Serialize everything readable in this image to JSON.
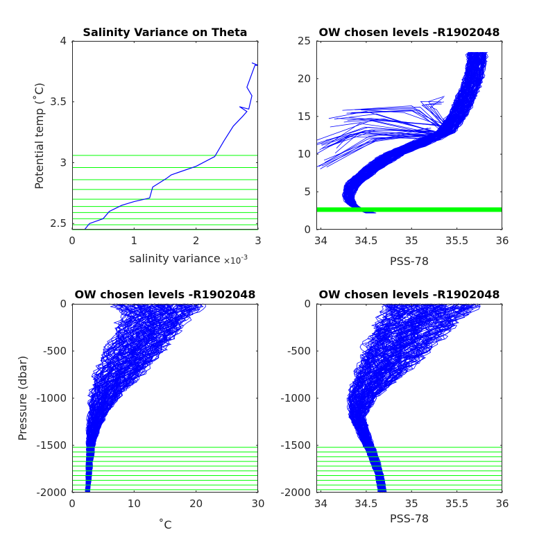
{
  "colors": {
    "profile": "#0000ff",
    "levels": "#00ff00",
    "axis": "#262626"
  },
  "chart_data": [
    {
      "id": "p1",
      "type": "line",
      "title": "Salinity Variance on Theta",
      "xlabel": "salinity variance",
      "xexponent": "×10",
      "xexponent_power": "-3",
      "ylabel": "Potential temp (˚C)",
      "xlim": [
        0,
        3
      ],
      "ylim": [
        2.45,
        4
      ],
      "xticks": [
        0,
        1,
        2,
        3
      ],
      "xtick_labels": [
        "0",
        "1",
        "2",
        "3"
      ],
      "yticks": [
        2.5,
        3,
        3.5,
        4
      ],
      "ytick_labels": [
        "2.5",
        "3",
        "3.5",
        "4"
      ],
      "series": [
        {
          "x": [
            0.2,
            0.28,
            0.5,
            0.6,
            0.8,
            1.0,
            1.25,
            1.3,
            1.52,
            1.6,
            2.0,
            2.3,
            2.45,
            2.6,
            2.75,
            2.82,
            2.7,
            2.85,
            2.9,
            2.82,
            2.95,
            3.0,
            2.9
          ],
          "y": [
            2.45,
            2.5,
            2.54,
            2.6,
            2.65,
            2.68,
            2.71,
            2.8,
            2.87,
            2.9,
            2.97,
            3.05,
            3.18,
            3.3,
            3.38,
            3.42,
            3.46,
            3.44,
            3.55,
            3.62,
            3.8,
            3.8,
            3.82
          ]
        }
      ],
      "hlines": [
        2.45,
        2.49,
        2.54,
        2.59,
        2.64,
        2.7,
        2.78,
        2.86,
        2.96,
        3.06
      ]
    },
    {
      "id": "p2",
      "type": "line",
      "title": "OW chosen levels -R1902048",
      "xlabel": "PSS-78",
      "ylabel": "",
      "xlim": [
        33.95,
        36
      ],
      "ylim": [
        0,
        25
      ],
      "xticks": [
        34,
        34.5,
        35,
        35.5,
        36
      ],
      "xtick_labels": [
        "34",
        "34.5",
        "35",
        "35.5",
        "36"
      ],
      "yticks": [
        0,
        5,
        10,
        15,
        20,
        25
      ],
      "ytick_labels": [
        "0",
        "5",
        "10",
        "15",
        "20",
        "25"
      ],
      "profile_shape": {
        "y": [
          2.2,
          2.6,
          3.0,
          3.5,
          4.5,
          6.0,
          8.0,
          10.0,
          12.0,
          13.0,
          15.0,
          17.5,
          20.0,
          22.5,
          23.5
        ],
        "x": [
          34.55,
          34.45,
          34.38,
          34.33,
          34.3,
          34.35,
          34.55,
          34.8,
          35.2,
          35.38,
          35.5,
          35.6,
          35.68,
          35.72,
          35.72
        ],
        "spread": [
          0.05,
          0.04,
          0.04,
          0.05,
          0.06,
          0.08,
          0.1,
          0.12,
          0.12,
          0.1,
          0.1,
          0.1,
          0.1,
          0.1,
          0.1
        ]
      },
      "surface_fans": [
        {
          "x": [
            35.25,
            34.5,
            33.95
          ],
          "y": [
            13.0,
            13.8,
            11.2
          ]
        },
        {
          "x": [
            35.3,
            34.6,
            34.2
          ],
          "y": [
            13.2,
            15.0,
            14.2
          ]
        },
        {
          "x": [
            35.35,
            35.0,
            34.35
          ],
          "y": [
            13.5,
            15.8,
            15.4
          ]
        },
        {
          "x": [
            35.2,
            34.5,
            34.0
          ],
          "y": [
            12.8,
            12.2,
            8.5
          ]
        },
        {
          "x": [
            35.4,
            35.2,
            35.3
          ],
          "y": [
            13.8,
            16.5,
            17.0
          ]
        },
        {
          "x": [
            35.15,
            34.4,
            34.05
          ],
          "y": [
            12.6,
            13.0,
            10.5
          ]
        }
      ],
      "band": {
        "y": [
          2.35,
          2.95
        ]
      }
    },
    {
      "id": "p3",
      "type": "line",
      "title": "OW chosen levels -R1902048",
      "xlabel": "˚C",
      "ylabel": "Pressure (dbar)",
      "xlim": [
        0,
        30
      ],
      "ylim": [
        -2000,
        0
      ],
      "xticks": [
        0,
        10,
        20,
        30
      ],
      "xtick_labels": [
        "0",
        "10",
        "20",
        "30"
      ],
      "yticks": [
        -2000,
        -1500,
        -1000,
        -500,
        0
      ],
      "ytick_labels": [
        "-2000",
        "-1500",
        "-1000",
        "-500",
        "0"
      ],
      "profile_shape": {
        "y": [
          -2000,
          -1800,
          -1500,
          -1300,
          -1100,
          -900,
          -700,
          -500,
          -300,
          -150,
          -50,
          0
        ],
        "x": [
          2.5,
          2.7,
          3.0,
          3.5,
          4.5,
          6.0,
          8.0,
          10.0,
          12.0,
          13.5,
          14.0,
          14.0
        ],
        "spread": [
          0.3,
          0.4,
          0.6,
          1.0,
          1.6,
          2.6,
          3.6,
          4.2,
          4.6,
          5.0,
          6.0,
          6.5
        ]
      },
      "hlines": [
        -1520,
        -1570,
        -1620,
        -1670,
        -1720,
        -1770,
        -1820,
        -1870,
        -1920,
        -1970
      ]
    },
    {
      "id": "p4",
      "type": "line",
      "title": "OW chosen levels -R1902048",
      "xlabel": "PSS-78",
      "ylabel": "",
      "xlim": [
        33.95,
        36
      ],
      "ylim": [
        -2000,
        0
      ],
      "xticks": [
        34,
        34.5,
        35,
        35.5,
        36
      ],
      "xtick_labels": [
        "34",
        "34.5",
        "35",
        "35.5",
        "36"
      ],
      "yticks": [
        -2000,
        -1500,
        -1000,
        -500,
        0
      ],
      "ytick_labels": [
        "-2000",
        "-1500",
        "-1000",
        "-500",
        "0"
      ],
      "profile_shape": {
        "y": [
          -2000,
          -1800,
          -1600,
          -1400,
          -1200,
          -1000,
          -800,
          -600,
          -400,
          -200,
          -50,
          0
        ],
        "x": [
          34.68,
          34.64,
          34.57,
          34.48,
          34.4,
          34.45,
          34.6,
          34.75,
          34.9,
          35.05,
          35.2,
          35.2
        ],
        "spread": [
          0.04,
          0.04,
          0.05,
          0.06,
          0.08,
          0.14,
          0.22,
          0.3,
          0.35,
          0.4,
          0.45,
          0.5
        ]
      },
      "hlines": [
        -1520,
        -1570,
        -1620,
        -1670,
        -1720,
        -1770,
        -1820,
        -1870,
        -1920,
        -1970
      ]
    }
  ]
}
